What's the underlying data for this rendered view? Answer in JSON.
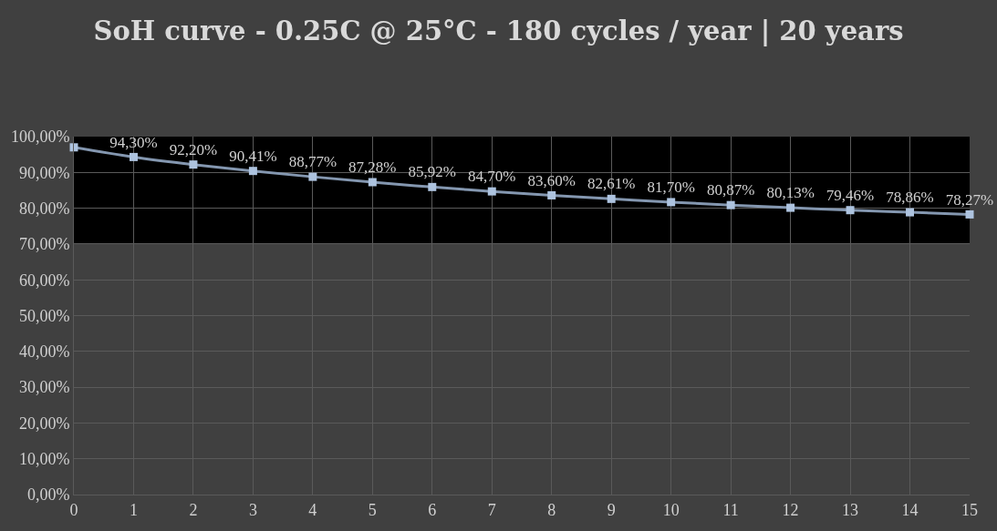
{
  "chart_data": {
    "type": "line",
    "title": "SoH curve - 0.25C @ 25°C - 180 cycles / year | 20 years",
    "x": [
      0,
      1,
      2,
      3,
      4,
      5,
      6,
      7,
      8,
      9,
      10,
      11,
      12,
      13,
      14,
      15
    ],
    "series": [
      {
        "color": "#8497b0",
        "values": [
          97.0,
          94.3,
          92.2,
          90.41,
          88.77,
          87.28,
          85.92,
          84.7,
          83.6,
          82.61,
          81.7,
          80.87,
          80.13,
          79.46,
          78.86,
          78.27
        ],
        "value_labels": [
          null,
          "94,30%",
          "92,20%",
          "90,41%",
          "88,77%",
          "87,28%",
          "85,92%",
          "84,70%",
          "83,60%",
          "82,61%",
          "81,70%",
          "80,87%",
          "80,13%",
          "79,46%",
          "78,86%",
          "78,27%"
        ]
      }
    ],
    "xlim": [
      0,
      15
    ],
    "xticks": [
      0,
      1,
      2,
      3,
      4,
      5,
      6,
      7,
      8,
      9,
      10,
      11,
      12,
      13,
      14,
      15
    ],
    "ylim": [
      0,
      100
    ],
    "yticks": [
      {
        "value": 0,
        "label": "0,00%"
      },
      {
        "value": 10,
        "label": "10,00%"
      },
      {
        "value": 20,
        "label": "20,00%"
      },
      {
        "value": 30,
        "label": "30,00%"
      },
      {
        "value": 40,
        "label": "40,00%"
      },
      {
        "value": 50,
        "label": "50,00%"
      },
      {
        "value": 60,
        "label": "60,00%"
      },
      {
        "value": 70,
        "label": "70,00%"
      },
      {
        "value": 80,
        "label": "80,00%"
      },
      {
        "value": 90,
        "label": "90,00%"
      },
      {
        "value": 100,
        "label": "100,00%"
      }
    ],
    "bands": [
      {
        "axis": "y",
        "from": 70,
        "to": 100,
        "color": "#000000"
      }
    ],
    "grid": true,
    "legend": false,
    "marker": "square",
    "line_style": "solid"
  }
}
